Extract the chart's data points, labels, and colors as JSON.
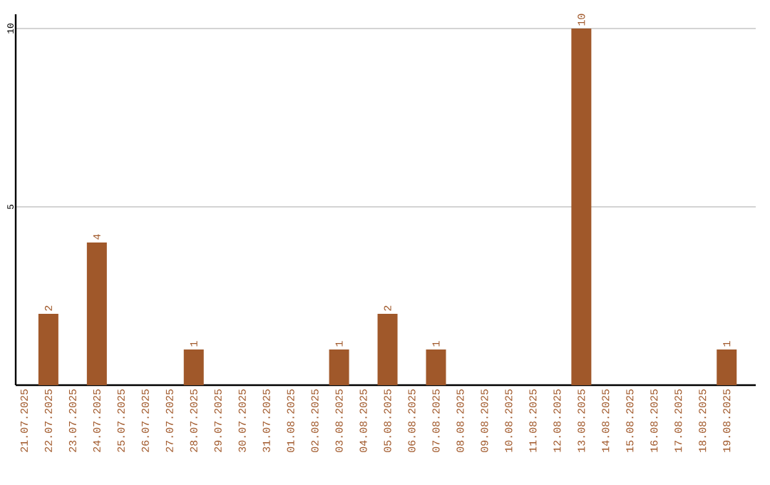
{
  "chart_data": {
    "type": "bar",
    "categories": [
      "21.07.2025",
      "22.07.2025",
      "23.07.2025",
      "24.07.2025",
      "25.07.2025",
      "26.07.2025",
      "27.07.2025",
      "28.07.2025",
      "29.07.2025",
      "30.07.2025",
      "31.07.2025",
      "01.08.2025",
      "02.08.2025",
      "03.08.2025",
      "04.08.2025",
      "05.08.2025",
      "06.08.2025",
      "07.08.2025",
      "08.08.2025",
      "09.08.2025",
      "10.08.2025",
      "11.08.2025",
      "12.08.2025",
      "13.08.2025",
      "14.08.2025",
      "15.08.2025",
      "16.08.2025",
      "17.08.2025",
      "18.08.2025",
      "19.08.2025"
    ],
    "values": [
      0,
      2,
      0,
      4,
      0,
      0,
      0,
      1,
      0,
      0,
      0,
      0,
      0,
      1,
      0,
      2,
      0,
      1,
      0,
      0,
      0,
      0,
      0,
      10,
      0,
      0,
      0,
      0,
      0,
      1
    ],
    "value_labels": [
      null,
      "2",
      null,
      "4",
      null,
      null,
      null,
      "1",
      null,
      null,
      null,
      null,
      null,
      "1",
      null,
      "2",
      null,
      "1",
      null,
      null,
      null,
      null,
      null,
      "10",
      null,
      null,
      null,
      null,
      null,
      "1"
    ],
    "color": "#a0582a",
    "ylim": [
      0,
      10.4
    ],
    "yticks": [
      5,
      10
    ],
    "grid": "y"
  }
}
